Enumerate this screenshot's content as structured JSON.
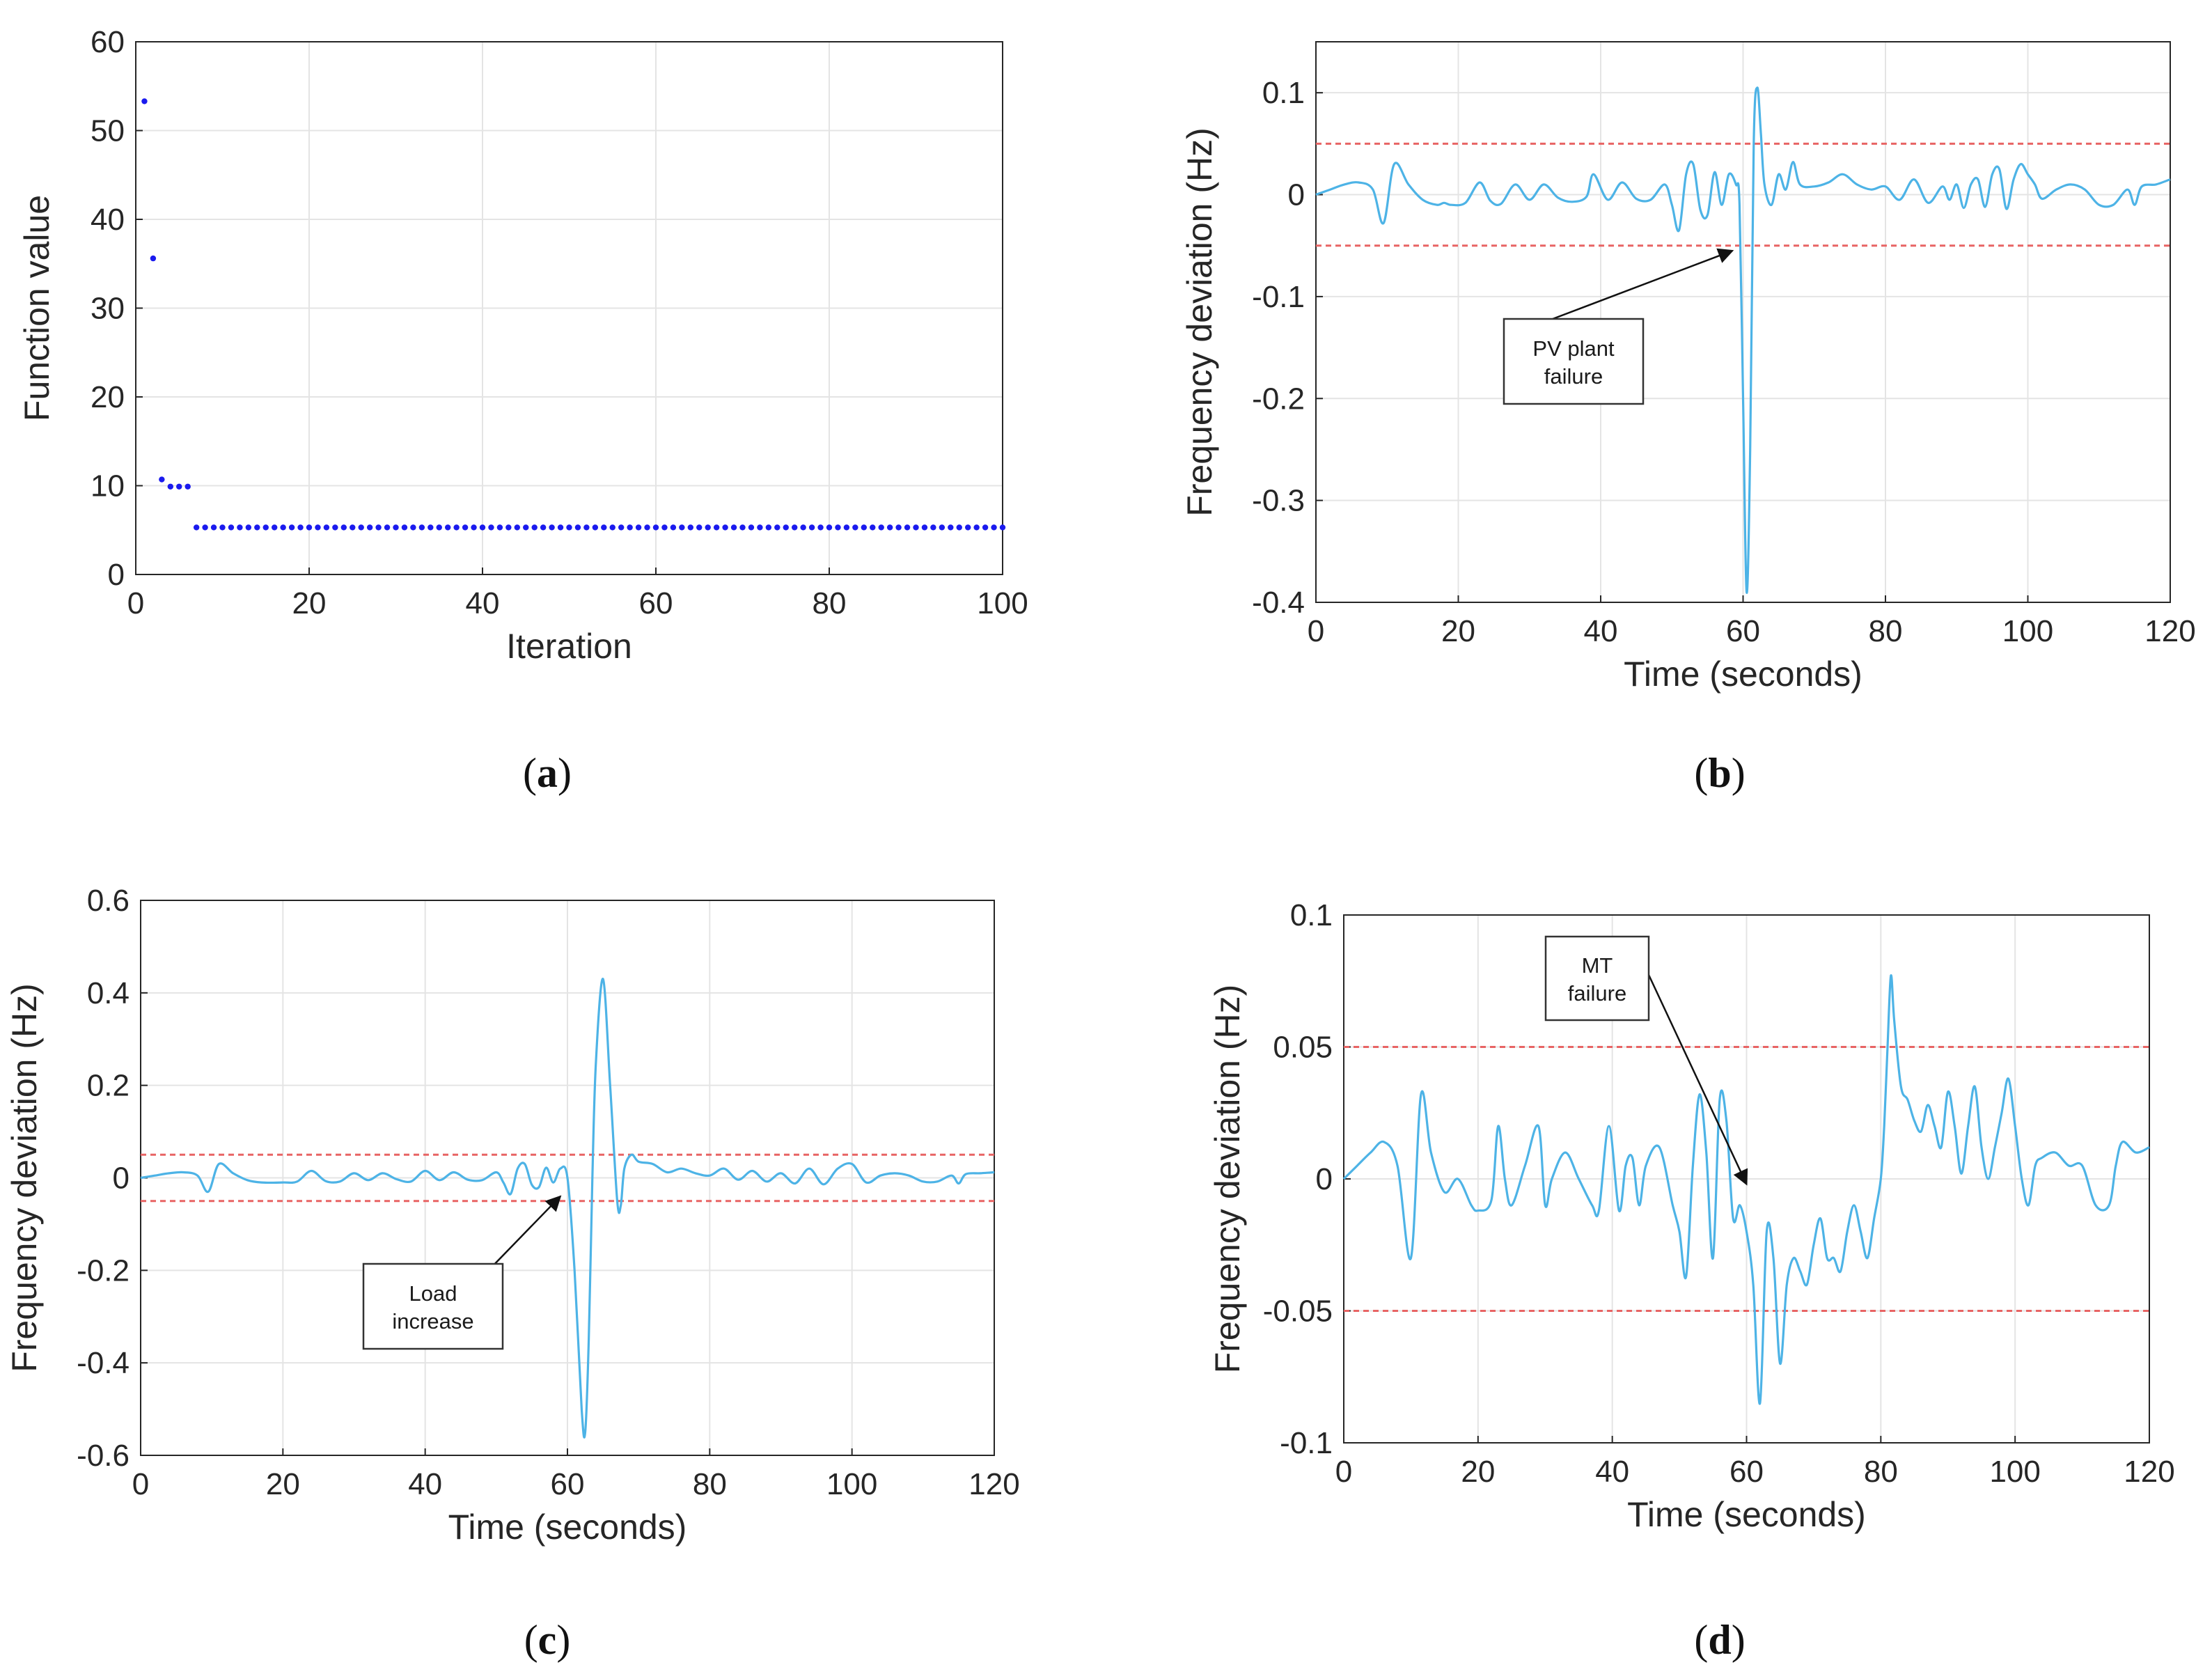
{
  "figure": {
    "captions": {
      "a": {
        "open": "(",
        "letter": "a",
        "close": ")"
      },
      "b": {
        "open": "(",
        "letter": "b",
        "close": ")"
      },
      "c": {
        "open": "(",
        "letter": "c",
        "close": ")"
      },
      "d": {
        "open": "(",
        "letter": "d",
        "close": ")"
      }
    }
  },
  "colors": {
    "series": "#4db3e6",
    "markers": "#1a1aee",
    "limits": "#e86464",
    "grid": "#e4e4e4",
    "axis": "#262626"
  },
  "chart_data": [
    {
      "id": "a",
      "type": "scatter",
      "title": "",
      "xlabel": "Iteration",
      "ylabel": "Function value",
      "xlim": [
        0,
        100
      ],
      "ylim": [
        0,
        60
      ],
      "xticks": [
        "0",
        "20",
        "40",
        "60",
        "80",
        "100"
      ],
      "yticks": [
        "0",
        "10",
        "20",
        "30",
        "40",
        "50",
        "60"
      ],
      "grid": true,
      "points": [
        [
          1,
          53.3
        ],
        [
          2,
          35.6
        ],
        [
          3,
          10.7
        ],
        [
          4,
          9.9
        ],
        [
          5,
          9.9
        ],
        [
          6,
          9.9
        ],
        [
          7,
          5.3
        ]
      ],
      "constant_from": 7,
      "constant_to": 100,
      "constant_value": 5.3
    },
    {
      "id": "b",
      "type": "line",
      "title": "",
      "xlabel": "Time (seconds)",
      "ylabel": "Frequency deviation (Hz)",
      "xlim": [
        0,
        120
      ],
      "ylim": [
        -0.4,
        0.15
      ],
      "xticks": [
        "0",
        "20",
        "40",
        "60",
        "80",
        "100",
        "120"
      ],
      "yticks": [
        "-0.4",
        "-0.3",
        "-0.2",
        "-0.1",
        "0",
        "0.1"
      ],
      "grid": true,
      "limits": [
        0.05,
        -0.05
      ],
      "annotation": {
        "line1": "PV plant",
        "line2": "failure",
        "target": [
          58.5,
          -0.055
        ]
      },
      "x": [
        0,
        2,
        4,
        6,
        8,
        9.5,
        11,
        13,
        15,
        17,
        18,
        19,
        21,
        23,
        24.5,
        26,
        28,
        30,
        32,
        34,
        36,
        38,
        39,
        41,
        43,
        45,
        47,
        49,
        50,
        51,
        52,
        53,
        54,
        55,
        56,
        57,
        58,
        59,
        59.5,
        60,
        60.5,
        61,
        61.5,
        62,
        62.5,
        63,
        64,
        65,
        66,
        67,
        68,
        70,
        72,
        74,
        76,
        78,
        80,
        82,
        84,
        86,
        88,
        89,
        90,
        91,
        92,
        93,
        94,
        95,
        96,
        97,
        98,
        99,
        100,
        101,
        102,
        104,
        106,
        108,
        110,
        112,
        114,
        115,
        116,
        118,
        120
      ],
      "y": [
        0,
        0.005,
        0.01,
        0.012,
        0.005,
        -0.028,
        0.03,
        0.01,
        -0.005,
        -0.01,
        -0.008,
        -0.01,
        -0.008,
        0.012,
        -0.006,
        -0.009,
        0.01,
        -0.005,
        0.01,
        -0.003,
        -0.007,
        -0.002,
        0.02,
        -0.005,
        0.012,
        -0.004,
        -0.005,
        0.01,
        -0.01,
        -0.035,
        0.02,
        0.03,
        -0.015,
        -0.02,
        0.022,
        -0.01,
        0.02,
        0.01,
        -0.01,
        -0.2,
        -0.39,
        -0.25,
        0.05,
        0.105,
        0.06,
        0.01,
        -0.01,
        0.02,
        0.005,
        0.032,
        0.01,
        0.008,
        0.012,
        0.02,
        0.01,
        0.005,
        0.008,
        -0.005,
        0.015,
        -0.008,
        0.008,
        -0.005,
        0.01,
        -0.013,
        0.01,
        0.015,
        -0.012,
        0.02,
        0.025,
        -0.014,
        0.015,
        0.03,
        0.02,
        0.01,
        -0.004,
        0.005,
        0.01,
        0.005,
        -0.01,
        -0.01,
        0.005,
        -0.01,
        0.008,
        0.01,
        0.015
      ]
    },
    {
      "id": "c",
      "type": "line",
      "title": "",
      "xlabel": "Time (seconds)",
      "ylabel": "Frequency deviation (Hz)",
      "xlim": [
        0,
        120
      ],
      "ylim": [
        -0.6,
        0.6
      ],
      "xticks": [
        "0",
        "20",
        "40",
        "60",
        "80",
        "100",
        "120"
      ],
      "yticks": [
        "-0.6",
        "-0.4",
        "-0.2",
        "0",
        "0.2",
        "0.4",
        "0.6"
      ],
      "grid": true,
      "limits": [
        0.05,
        -0.05
      ],
      "annotation": {
        "line1": "Load",
        "line2": "increase",
        "target": [
          59,
          -0.04
        ]
      },
      "x": [
        0,
        2,
        4,
        6,
        8,
        9.5,
        11,
        13,
        15,
        17,
        20,
        22,
        24,
        26,
        28,
        30,
        32,
        34,
        36,
        38,
        40,
        42,
        44,
        46,
        48,
        50,
        51,
        52,
        53,
        54,
        55,
        56,
        57,
        58,
        59,
        60,
        61,
        62,
        62.5,
        63,
        63.5,
        64,
        65,
        66,
        67,
        67.5,
        68,
        69,
        70,
        72,
        74,
        76,
        78,
        80,
        82,
        84,
        86,
        88,
        90,
        92,
        94,
        96,
        98,
        100,
        102,
        104,
        106,
        108,
        110,
        112,
        114,
        115,
        116,
        118,
        120
      ],
      "y": [
        0,
        0.005,
        0.01,
        0.012,
        0.005,
        -0.03,
        0.03,
        0.01,
        -0.005,
        -0.01,
        -0.01,
        -0.008,
        0.015,
        -0.007,
        -0.008,
        0.01,
        -0.005,
        0.01,
        -0.003,
        -0.008,
        0.015,
        -0.005,
        0.012,
        -0.004,
        -0.005,
        0.012,
        -0.01,
        -0.035,
        0.02,
        0.03,
        -0.015,
        -0.02,
        0.022,
        -0.01,
        0.02,
        0.0,
        -0.2,
        -0.5,
        -0.55,
        -0.35,
        0.0,
        0.25,
        0.43,
        0.2,
        -0.05,
        -0.06,
        0.02,
        0.05,
        0.035,
        0.03,
        0.012,
        0.02,
        0.01,
        0.005,
        0.02,
        -0.004,
        0.015,
        -0.008,
        0.01,
        -0.012,
        0.02,
        -0.014,
        0.02,
        0.03,
        -0.01,
        0.005,
        0.01,
        0.005,
        -0.008,
        -0.008,
        0.005,
        -0.012,
        0.008,
        0.01,
        0.012
      ]
    },
    {
      "id": "d",
      "type": "line",
      "title": "",
      "xlabel": "Time (seconds)",
      "ylabel": "Frequency deviation (Hz)",
      "xlim": [
        0,
        120
      ],
      "ylim": [
        -0.1,
        0.1
      ],
      "xticks": [
        "0",
        "20",
        "40",
        "60",
        "80",
        "100",
        "120"
      ],
      "yticks": [
        "-0.1",
        "-0.05",
        "0",
        "0.05",
        "0.1"
      ],
      "grid": true,
      "limits": [
        0.05,
        -0.05
      ],
      "annotation": {
        "line1": "MT",
        "line2": "failure",
        "target": [
          60,
          -0.002
        ]
      },
      "x": [
        0,
        2,
        4,
        6,
        8,
        10,
        11.5,
        13,
        15,
        17,
        19,
        20,
        22,
        23,
        24,
        25,
        27,
        29,
        30,
        31,
        33,
        35,
        37,
        38,
        39.5,
        41,
        42,
        43,
        44,
        45,
        47,
        49,
        50,
        51,
        52,
        53,
        54,
        55,
        56,
        57,
        58,
        59,
        60,
        61,
        62,
        63,
        64,
        65,
        66,
        67,
        68,
        69,
        70,
        71,
        72,
        73,
        74,
        75,
        76,
        77,
        78,
        79,
        80,
        80.5,
        81,
        81.5,
        82,
        83,
        84,
        85,
        86,
        87,
        88,
        89,
        90,
        91,
        92,
        93,
        94,
        95,
        96,
        97,
        98,
        99,
        100,
        101,
        102,
        103,
        104,
        106,
        108,
        110,
        112,
        114,
        115,
        116,
        118,
        120
      ],
      "y": [
        0,
        0.005,
        0.01,
        0.014,
        0.005,
        -0.03,
        0.032,
        0.01,
        -0.005,
        0.0,
        -0.01,
        -0.012,
        -0.008,
        0.02,
        0.0,
        -0.01,
        0.005,
        0.02,
        -0.01,
        0.0,
        0.01,
        0.0,
        -0.01,
        -0.012,
        0.02,
        -0.012,
        0.005,
        0.008,
        -0.01,
        0.005,
        0.012,
        -0.01,
        -0.02,
        -0.037,
        0.005,
        0.032,
        0.01,
        -0.03,
        0.03,
        0.022,
        -0.015,
        -0.01,
        -0.02,
        -0.04,
        -0.085,
        -0.02,
        -0.03,
        -0.07,
        -0.04,
        -0.03,
        -0.035,
        -0.04,
        -0.025,
        -0.015,
        -0.03,
        -0.03,
        -0.035,
        -0.02,
        -0.01,
        -0.02,
        -0.03,
        -0.015,
        0.0,
        0.02,
        0.05,
        0.077,
        0.06,
        0.035,
        0.03,
        0.022,
        0.018,
        0.028,
        0.02,
        0.012,
        0.033,
        0.02,
        0.002,
        0.02,
        0.035,
        0.012,
        0.0,
        0.012,
        0.025,
        0.038,
        0.02,
        0.0,
        -0.01,
        0.005,
        0.008,
        0.01,
        0.005,
        0.005,
        -0.01,
        -0.01,
        0.005,
        0.014,
        0.01,
        0.012
      ]
    }
  ]
}
